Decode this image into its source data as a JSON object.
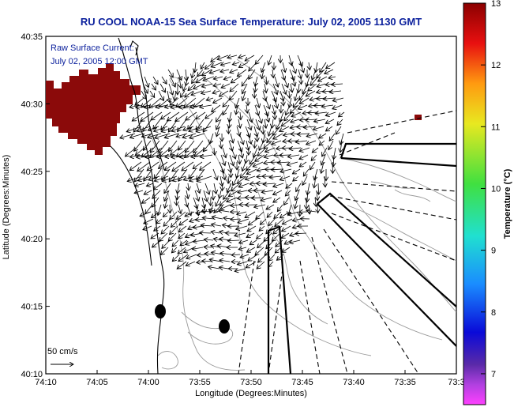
{
  "title": "RU COOL  NOAA-15  Sea Surface Temperature:  July 02, 2005 1130 GMT",
  "current_label": "Raw Surface Current:",
  "current_time": "July 02, 2005 12:00 GMT",
  "x_axis": {
    "label": "Longitude (Degrees:Minutes)",
    "ticks": [
      "74:10",
      "74:05",
      "74:00",
      "73:55",
      "73:50",
      "73:45",
      "73:40",
      "73:35",
      "73:3"
    ]
  },
  "y_axis": {
    "label": "Latitude (Degrees:Minutes)",
    "ticks": [
      "40:35",
      "40:30",
      "40:25",
      "40:20",
      "40:15",
      "40:10"
    ]
  },
  "colorbar": {
    "label": "Temperature (°C)",
    "ticks": [
      "13",
      "12",
      "11",
      "10",
      "9",
      "8",
      "7"
    ],
    "min": 6.5,
    "max": 13
  },
  "scale_bar": {
    "label": "50 cm/s"
  },
  "colors": {
    "title": "#0a1f9c",
    "warm_patch": "#8b0a0a",
    "coast": "#000000",
    "bathymetry": "#9a9a9a"
  }
}
